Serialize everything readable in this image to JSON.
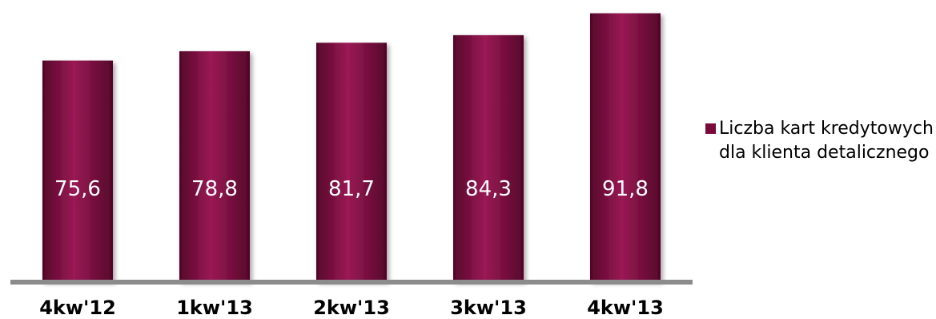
{
  "chart_data": {
    "type": "bar",
    "categories": [
      "4kw'12",
      "1kw'13",
      "2kw'13",
      "3kw'13",
      "4kw'13"
    ],
    "series": [
      {
        "name": "Liczba kart kredytowych dla klienta detalicznego",
        "values": [
          75.6,
          78.8,
          81.7,
          84.3,
          91.8
        ],
        "value_labels": [
          "75,6",
          "78,8",
          "81,7",
          "84,3",
          "91,8"
        ]
      }
    ],
    "title": "",
    "xlabel": "",
    "ylabel": "",
    "ylim": [
      0,
      92.5
    ],
    "grid": false,
    "legend_position": "right",
    "colors": {
      "bar": "#7a0a3a",
      "bar_light": "#9a1a55",
      "bar_dark": "#55052a",
      "axis": "#8c8c8c"
    }
  }
}
